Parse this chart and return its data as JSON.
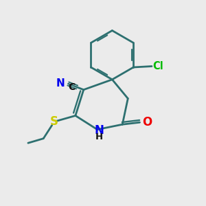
{
  "background_color": "#ebebeb",
  "bond_color": "#2d7070",
  "bond_width": 2.0,
  "cl_color": "#00bb00",
  "n_color": "#0000ee",
  "o_color": "#ee0000",
  "s_color": "#cccc00",
  "c_color": "#111111",
  "figsize": [
    3.0,
    3.0
  ],
  "dpi": 100,
  "xlim": [
    0,
    10
  ],
  "ylim": [
    0,
    10
  ]
}
